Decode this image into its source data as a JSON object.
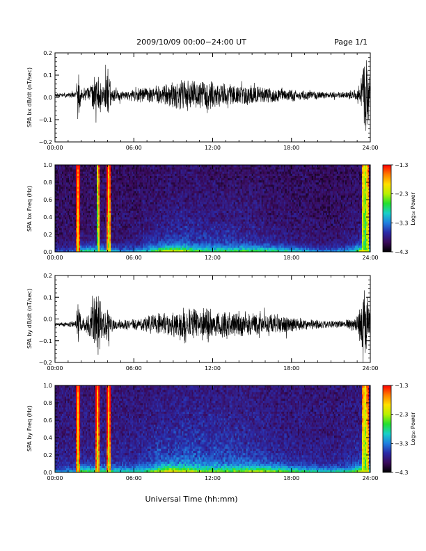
{
  "header": {
    "date_range": "2009/10/09  00:00−24:00 UT",
    "page": "Page 1/1"
  },
  "x_axis_label": "Universal Time (hh:mm)",
  "colors": {
    "trace": "#000000",
    "colorbar_stops": [
      "#000000",
      "#3a0a5a",
      "#2a2aa8",
      "#1f7fe0",
      "#18d0c8",
      "#22e030",
      "#b8f000",
      "#ffe000",
      "#ff8000",
      "#ff0000"
    ]
  },
  "chart_data": [
    {
      "id": "bx-time-series",
      "type": "line",
      "ylabel": "SPA bx dB/dt (nT/sec)",
      "xlim": [
        0,
        24
      ],
      "ylim": [
        -0.2,
        0.2
      ],
      "x_ticks": [
        "00:00",
        "06:00",
        "12:00",
        "18:00",
        "24:00"
      ],
      "y_ticks": [
        "0.2",
        "0.1",
        "0.0",
        "−0.1",
        "−0.2"
      ],
      "y_tick_values": [
        0.2,
        0.1,
        0.0,
        -0.1,
        -0.2
      ],
      "baseline": 0.01,
      "envelope_hours": [
        0,
        1,
        1.6,
        1.75,
        2.0,
        2.5,
        3.0,
        3.3,
        3.6,
        4.0,
        4.3,
        5.0,
        6.0,
        8.0,
        9.0,
        10.0,
        11.0,
        11.5,
        12.0,
        13.0,
        14.0,
        15.0,
        16.0,
        17.0,
        18.0,
        19.0,
        20.0,
        21.0,
        22.0,
        23.0,
        23.4,
        23.7,
        24.0
      ],
      "envelope_amplitude": [
        0.01,
        0.012,
        0.02,
        0.16,
        0.03,
        0.04,
        0.09,
        0.13,
        0.05,
        0.14,
        0.05,
        0.025,
        0.03,
        0.05,
        0.07,
        0.08,
        0.06,
        0.1,
        0.06,
        0.06,
        0.05,
        0.05,
        0.04,
        0.04,
        0.03,
        0.025,
        0.02,
        0.015,
        0.015,
        0.03,
        0.12,
        0.2,
        0.05
      ],
      "seed": 11
    },
    {
      "id": "bx-spectrogram",
      "type": "heatmap",
      "ylabel": "SPA bx Freq (Hz)",
      "colorbar_label": "Log₁₀ Power",
      "xlim": [
        0,
        24
      ],
      "ylim": [
        0.0,
        1.0
      ],
      "x_ticks": [
        "00:00",
        "06:00",
        "12:00",
        "18:00",
        "24:00"
      ],
      "y_ticks": [
        "1.0",
        "0.8",
        "0.6",
        "0.4",
        "0.2",
        "0.0"
      ],
      "y_tick_values": [
        1.0,
        0.8,
        0.6,
        0.4,
        0.2,
        0.0
      ],
      "colorbar_ticks": [
        "−1.3",
        "−2.3",
        "−3.3",
        "−4.3"
      ],
      "colorbar_values": [
        -1.3,
        -2.3,
        -3.3,
        -4.3
      ],
      "clim": [
        -4.3,
        -1.3
      ],
      "background_level": -4.05,
      "low_freq_hours": [
        0,
        1.5,
        2.0,
        4.0,
        5.0,
        7.0,
        8.5,
        9.5,
        10.5,
        12.0,
        14.0,
        15.5,
        17.0,
        20.0,
        22.5,
        23.5,
        24.0
      ],
      "low_freq_level": [
        -3.6,
        -3.5,
        -2.6,
        -2.9,
        -3.3,
        -3.1,
        -2.3,
        -2.4,
        -2.9,
        -3.0,
        -2.9,
        -2.7,
        -2.8,
        -3.3,
        -3.2,
        -1.9,
        -3.0
      ],
      "mid_activity_hours": [
        0,
        6.0,
        8.0,
        10.0,
        12.0,
        14.0,
        16.0,
        18.0,
        21.0,
        24.0
      ],
      "mid_activity_level": [
        0.1,
        0.2,
        0.45,
        0.55,
        0.5,
        0.45,
        0.3,
        0.2,
        0.1,
        0.35
      ],
      "bursts": [
        {
          "hour": 1.75,
          "width": 0.12,
          "level": -2.2
        },
        {
          "hour": 3.25,
          "width": 0.1,
          "level": -2.8
        },
        {
          "hour": 4.1,
          "width": 0.12,
          "level": -2.5
        },
        {
          "hour": 23.6,
          "width": 0.25,
          "level": -2.9
        }
      ],
      "seed": 23
    },
    {
      "id": "by-time-series",
      "type": "line",
      "ylabel": "SPA by dB/dt (nT/sec)",
      "xlim": [
        0,
        24
      ],
      "ylim": [
        -0.2,
        0.2
      ],
      "x_ticks": [
        "00:00",
        "06:00",
        "12:00",
        "18:00",
        "24:00"
      ],
      "y_ticks": [
        "0.2",
        "0.1",
        "0.0",
        "−0.1",
        "−0.2"
      ],
      "y_tick_values": [
        0.2,
        0.1,
        0.0,
        -0.1,
        -0.2
      ],
      "baseline": -0.025,
      "envelope_hours": [
        0,
        1,
        1.6,
        1.75,
        2.0,
        2.5,
        3.0,
        3.3,
        3.6,
        4.0,
        4.3,
        5.0,
        6.0,
        8.0,
        9.0,
        10.0,
        11.0,
        11.5,
        12.0,
        13.0,
        14.0,
        15.0,
        16.0,
        17.0,
        18.0,
        19.0,
        20.0,
        21.0,
        22.0,
        23.0,
        23.4,
        23.7,
        24.0
      ],
      "envelope_amplitude": [
        0.01,
        0.012,
        0.02,
        0.14,
        0.03,
        0.05,
        0.12,
        0.2,
        0.06,
        0.1,
        0.04,
        0.025,
        0.03,
        0.06,
        0.07,
        0.09,
        0.07,
        0.1,
        0.07,
        0.07,
        0.06,
        0.06,
        0.05,
        0.05,
        0.04,
        0.03,
        0.025,
        0.02,
        0.02,
        0.04,
        0.14,
        0.2,
        0.05
      ],
      "seed": 37
    },
    {
      "id": "by-spectrogram",
      "type": "heatmap",
      "ylabel": "SPA by Freq (Hz)",
      "colorbar_label": "Log₁₀ Power",
      "xlim": [
        0,
        24
      ],
      "ylim": [
        0.0,
        1.0
      ],
      "x_ticks": [
        "00:00",
        "06:00",
        "12:00",
        "18:00",
        "24:00"
      ],
      "y_ticks": [
        "1.0",
        "0.8",
        "0.6",
        "0.4",
        "0.2",
        "0.0"
      ],
      "y_tick_values": [
        1.0,
        0.8,
        0.6,
        0.4,
        0.2,
        0.0
      ],
      "colorbar_ticks": [
        "−1.3",
        "−2.3",
        "−3.3",
        "−4.3"
      ],
      "colorbar_values": [
        -1.3,
        -2.3,
        -3.3,
        -4.3
      ],
      "clim": [
        -4.3,
        -1.3
      ],
      "background_level": -3.95,
      "low_freq_hours": [
        0,
        1.5,
        2.0,
        4.0,
        5.0,
        7.0,
        8.5,
        9.5,
        10.5,
        12.0,
        14.0,
        15.5,
        17.0,
        20.0,
        22.5,
        23.5,
        24.0
      ],
      "low_freq_level": [
        -3.3,
        -3.2,
        -2.5,
        -2.7,
        -3.0,
        -2.9,
        -2.2,
        -2.3,
        -2.6,
        -2.8,
        -2.7,
        -2.3,
        -2.5,
        -2.9,
        -2.9,
        -2.0,
        -2.9
      ],
      "mid_activity_hours": [
        0,
        6.0,
        8.0,
        10.0,
        12.0,
        14.0,
        16.0,
        18.0,
        21.0,
        24.0
      ],
      "mid_activity_level": [
        0.15,
        0.25,
        0.55,
        0.65,
        0.6,
        0.55,
        0.4,
        0.25,
        0.15,
        0.4
      ],
      "bursts": [
        {
          "hour": 1.75,
          "width": 0.12,
          "level": -2.3
        },
        {
          "hour": 3.25,
          "width": 0.12,
          "level": -2.4
        },
        {
          "hour": 4.1,
          "width": 0.12,
          "level": -2.4
        },
        {
          "hour": 23.6,
          "width": 0.25,
          "level": -2.7
        }
      ],
      "seed": 41
    }
  ]
}
